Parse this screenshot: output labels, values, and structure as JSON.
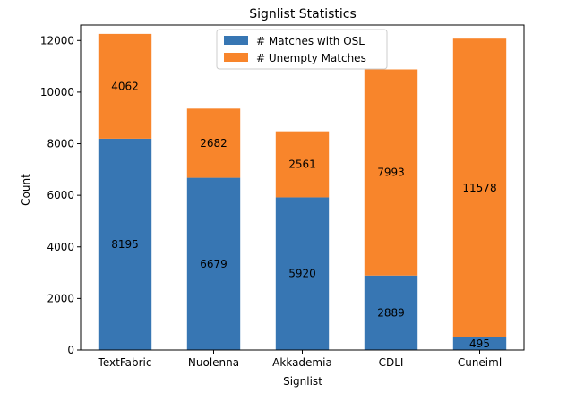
{
  "chart_data": {
    "type": "bar",
    "stacked": true,
    "title": "Signlist Statistics",
    "xlabel": "Signlist",
    "ylabel": "Count",
    "categories": [
      "TextFabric",
      "Nuolenna",
      "Akkademia",
      "CDLI",
      "Cuneiml"
    ],
    "series": [
      {
        "name": "# Matches with OSL",
        "values": [
          8195,
          6679,
          5920,
          2889,
          495
        ],
        "color": "#3776b3"
      },
      {
        "name": "# Unempty Matches",
        "values": [
          4062,
          2682,
          2561,
          7993,
          11578
        ],
        "color": "#f8852b"
      }
    ],
    "ylim": [
      0,
      12600
    ],
    "yticks": [
      0,
      2000,
      4000,
      6000,
      8000,
      10000,
      12000
    ],
    "legend_position": "top-center",
    "grid": false
  }
}
